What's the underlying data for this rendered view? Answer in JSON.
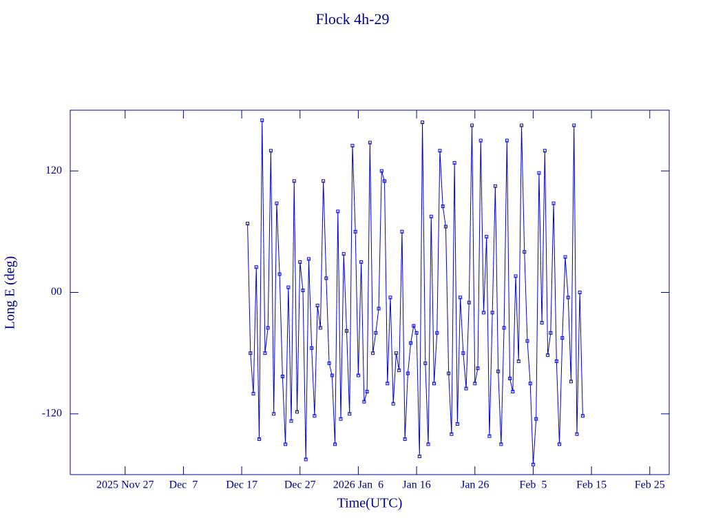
{
  "chart_data": {
    "type": "line",
    "title": "Flock 4h-29",
    "x_label": "Time(UTC)",
    "y_label": "Long E (deg)",
    "color": "#0000cc",
    "x": [
      "2025-12-18 00:00",
      "2025-12-18 12:00",
      "2025-12-19 00:00",
      "2025-12-19 12:00",
      "2025-12-20 00:00",
      "2025-12-20 12:00",
      "2025-12-21 00:00",
      "2025-12-21 12:00",
      "2025-12-22 00:00",
      "2025-12-22 12:00",
      "2025-12-23 00:00",
      "2025-12-23 12:00",
      "2025-12-24 00:00",
      "2025-12-24 12:00",
      "2025-12-25 00:00",
      "2025-12-25 12:00",
      "2025-12-26 00:00",
      "2025-12-26 12:00",
      "2025-12-27 00:00",
      "2025-12-27 12:00",
      "2025-12-28 00:00",
      "2025-12-28 12:00",
      "2025-12-29 00:00",
      "2025-12-29 12:00",
      "2025-12-30 00:00",
      "2025-12-30 12:00",
      "2025-12-31 00:00",
      "2025-12-31 12:00",
      "2026-01-01 00:00",
      "2026-01-01 12:00",
      "2026-01-02 00:00",
      "2026-01-02 12:00",
      "2026-01-03 00:00",
      "2026-01-03 12:00",
      "2026-01-04 00:00",
      "2026-01-04 12:00",
      "2026-01-05 00:00",
      "2026-01-05 12:00",
      "2026-01-06 00:00",
      "2026-01-06 12:00",
      "2026-01-07 00:00",
      "2026-01-07 12:00",
      "2026-01-08 00:00",
      "2026-01-08 12:00",
      "2026-01-09 00:00",
      "2026-01-09 12:00",
      "2026-01-10 00:00",
      "2026-01-10 12:00",
      "2026-01-11 00:00",
      "2026-01-11 12:00",
      "2026-01-12 00:00",
      "2026-01-12 12:00",
      "2026-01-13 00:00",
      "2026-01-13 12:00",
      "2026-01-14 00:00",
      "2026-01-14 12:00",
      "2026-01-15 00:00",
      "2026-01-15 12:00",
      "2026-01-16 00:00",
      "2026-01-16 12:00",
      "2026-01-17 00:00",
      "2026-01-17 12:00",
      "2026-01-18 00:00",
      "2026-01-18 12:00",
      "2026-01-19 00:00",
      "2026-01-19 12:00",
      "2026-01-20 00:00",
      "2026-01-20 12:00",
      "2026-01-21 00:00",
      "2026-01-21 12:00",
      "2026-01-22 00:00",
      "2026-01-22 12:00",
      "2026-01-23 00:00",
      "2026-01-23 12:00",
      "2026-01-24 00:00",
      "2026-01-24 12:00",
      "2026-01-25 00:00",
      "2026-01-25 12:00",
      "2026-01-26 00:00",
      "2026-01-26 12:00",
      "2026-01-27 00:00",
      "2026-01-27 12:00",
      "2026-01-28 00:00",
      "2026-01-28 12:00",
      "2026-01-29 00:00",
      "2026-01-29 12:00",
      "2026-01-30 00:00",
      "2026-01-30 12:00",
      "2026-01-31 00:00",
      "2026-01-31 12:00",
      "2026-02-01 00:00",
      "2026-02-01 12:00",
      "2026-02-02 00:00",
      "2026-02-02 12:00",
      "2026-02-03 00:00",
      "2026-02-03 12:00",
      "2026-02-04 00:00",
      "2026-02-04 12:00",
      "2026-02-05 00:00",
      "2026-02-05 12:00",
      "2026-02-06 00:00",
      "2026-02-06 12:00",
      "2026-02-07 00:00",
      "2026-02-07 12:00",
      "2026-02-08 00:00",
      "2026-02-08 12:00",
      "2026-02-09 00:00",
      "2026-02-09 12:00",
      "2026-02-10 00:00",
      "2026-02-10 12:00",
      "2026-02-11 00:00",
      "2026-02-11 12:00",
      "2026-02-12 00:00",
      "2026-02-12 12:00",
      "2026-02-13 00:00",
      "2026-02-13 12:00"
    ],
    "values": [
      68,
      -60,
      -100,
      25,
      -145,
      170,
      -60,
      -35,
      140,
      -120,
      88,
      18,
      -83,
      -150,
      5,
      -127,
      110,
      -118,
      30,
      2,
      -165,
      33,
      -55,
      -122,
      -13,
      -35,
      110,
      14,
      -70,
      -82,
      -150,
      80,
      -125,
      38,
      -38,
      -120,
      145,
      60,
      -82,
      30,
      -108,
      -98,
      148,
      -60,
      -40,
      -16,
      120,
      110,
      -90,
      -5,
      -110,
      -60,
      -77,
      60,
      -145,
      -80,
      -50,
      -33,
      -40,
      -162,
      168,
      -70,
      -150,
      75,
      -90,
      -40,
      140,
      85,
      65,
      -80,
      -140,
      128,
      -130,
      -5,
      -60,
      -95,
      -10,
      165,
      -90,
      -75,
      150,
      -20,
      55,
      -142,
      -20,
      105,
      -78,
      -150,
      -35,
      150,
      -85,
      -98,
      16,
      -68,
      165,
      40,
      -48,
      -90,
      -170,
      -125,
      118,
      -30,
      140,
      -62,
      -40,
      88,
      -68,
      -150,
      -45,
      35,
      -5,
      -88,
      165,
      -140,
      0,
      -122
    ],
    "xlim": [
      "2025-11-17 14:00",
      "2026-02-28 08:00"
    ],
    "xticks": [
      {
        "value": "2025-11-27 00:00",
        "label": "2025 Nov 27"
      },
      {
        "value": "2025-12-07 00:00",
        "label": "Dec  7"
      },
      {
        "value": "2025-12-17 00:00",
        "label": "Dec 17"
      },
      {
        "value": "2025-12-27 00:00",
        "label": "Dec 27"
      },
      {
        "value": "2026-01-06 00:00",
        "label": "2026 Jan  6"
      },
      {
        "value": "2026-01-16 00:00",
        "label": "Jan 16"
      },
      {
        "value": "2026-01-26 00:00",
        "label": "Jan 26"
      },
      {
        "value": "2026-02-05 00:00",
        "label": "Feb  5"
      },
      {
        "value": "2026-02-15 00:00",
        "label": "Feb 15"
      },
      {
        "value": "2026-02-25 00:00",
        "label": "Feb 25"
      }
    ],
    "ylim": [
      -180,
      180
    ],
    "yticks": [
      -120,
      {
        "value": 0,
        "label": "00"
      },
      120
    ]
  }
}
